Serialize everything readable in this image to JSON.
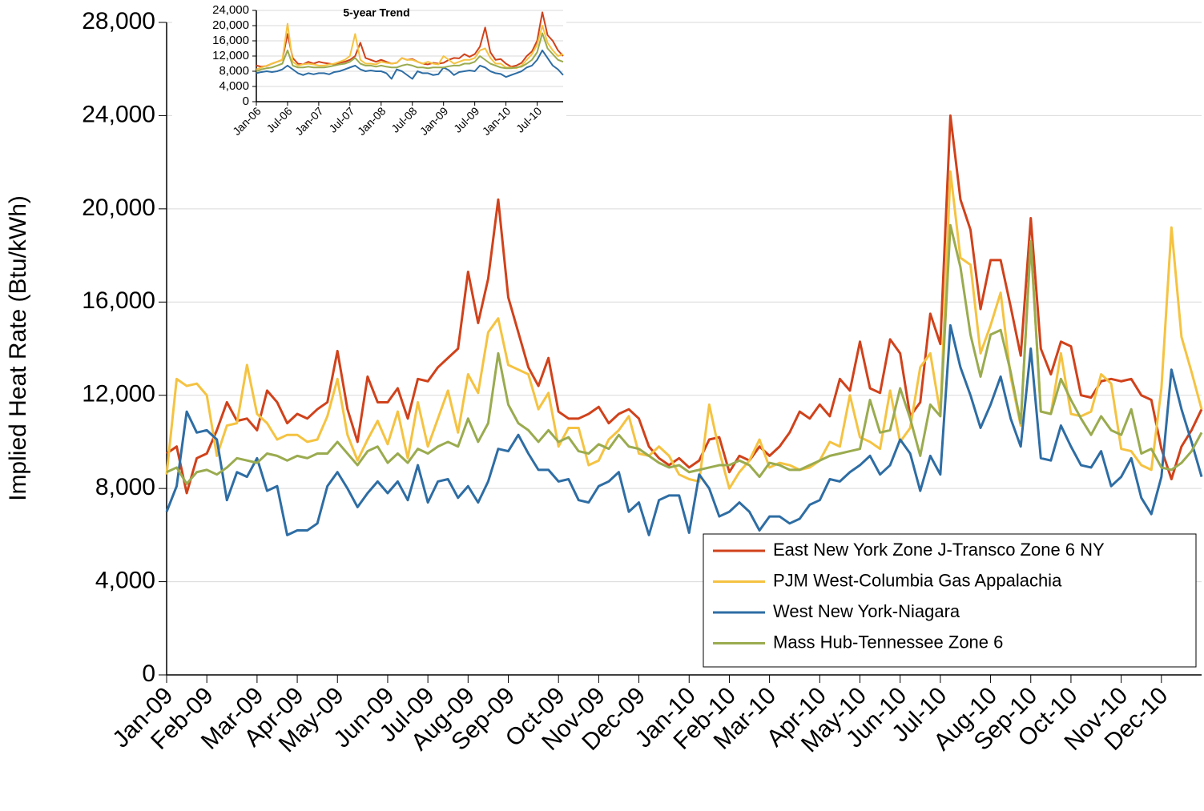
{
  "chart_data": [
    {
      "type": "line",
      "y_label": "Implied Heat Rate (Btu/kWh)",
      "categories": [
        "Jan-09",
        null,
        null,
        null,
        "Feb-09",
        null,
        null,
        null,
        null,
        "Mar-09",
        null,
        null,
        null,
        "Apr-09",
        null,
        null,
        null,
        "May-09",
        null,
        null,
        null,
        null,
        "Jun-09",
        null,
        null,
        null,
        "Jul-09",
        null,
        null,
        null,
        "Aug-09",
        null,
        null,
        null,
        "Sep-09",
        null,
        null,
        null,
        null,
        "Oct-09",
        null,
        null,
        null,
        "Nov-09",
        null,
        null,
        null,
        "Dec-09",
        null,
        null,
        null,
        null,
        "Jan-10",
        null,
        null,
        null,
        "Feb-10",
        null,
        null,
        null,
        "Mar-10",
        null,
        null,
        null,
        null,
        "Apr-10",
        null,
        null,
        null,
        "May-10",
        null,
        null,
        null,
        "Jun-10",
        null,
        null,
        null,
        "Jul-10",
        null,
        null,
        null,
        null,
        "Aug-10",
        null,
        null,
        null,
        "Sep-10",
        null,
        null,
        null,
        "Oct-10",
        null,
        null,
        null,
        null,
        "Nov-10",
        null,
        null,
        null,
        "Dec-10",
        null,
        null,
        null,
        null
      ],
      "series": [
        {
          "name": "East New York Zone J-Transco Zone 6 NY",
          "color": "#d0421b",
          "values": [
            9500,
            9800,
            7800,
            9300,
            9500,
            10500,
            11700,
            10900,
            11000,
            10500,
            12200,
            11700,
            10800,
            11200,
            11000,
            11400,
            11700,
            13900,
            11400,
            10000,
            12800,
            11700,
            11700,
            12300,
            11000,
            12700,
            12600,
            13200,
            13600,
            14000,
            17300,
            15100,
            17000,
            20400,
            16200,
            14700,
            13200,
            12400,
            13600,
            11300,
            11000,
            11000,
            11200,
            11500,
            10800,
            11200,
            11400,
            11000,
            9800,
            9300,
            9000,
            9300,
            8900,
            9200,
            10100,
            10200,
            8700,
            9400,
            9200,
            9800,
            9400,
            9800,
            10400,
            11300,
            11000,
            11600,
            11100,
            12700,
            12200,
            14300,
            12300,
            12100,
            14400,
            13800,
            11100,
            11700,
            15500,
            14200,
            24000,
            20400,
            19100,
            15700,
            17800,
            17800,
            15800,
            13700,
            19600,
            14000,
            12900,
            14300,
            14100,
            12000,
            11900,
            12600,
            12700,
            12600,
            12700,
            12000,
            11800,
            9700,
            8400,
            9800,
            10500,
            11400
          ]
        },
        {
          "name": "PJM West-Columbia Gas Appalachia",
          "color": "#f5c342",
          "values": [
            8600,
            12700,
            12400,
            12500,
            12000,
            9400,
            10700,
            10800,
            13300,
            11200,
            10800,
            10100,
            10300,
            10300,
            10000,
            10100,
            11100,
            12700,
            10300,
            9200,
            10100,
            10900,
            9900,
            11300,
            9300,
            11700,
            9800,
            11000,
            12200,
            10400,
            12900,
            12100,
            14700,
            15300,
            13300,
            13100,
            12900,
            11400,
            12100,
            9800,
            10600,
            10600,
            9000,
            9200,
            10100,
            10500,
            11100,
            9500,
            9400,
            9800,
            9400,
            8600,
            8400,
            8300,
            11600,
            9600,
            8000,
            8700,
            9200,
            10100,
            8900,
            9100,
            9000,
            8800,
            8900,
            9200,
            10000,
            9800,
            12000,
            10200,
            10000,
            9700,
            12200,
            10000,
            10600,
            13200,
            13800,
            11200,
            21600,
            17900,
            17600,
            13800,
            15000,
            16400,
            12800,
            10700,
            18600,
            11300,
            11200,
            13800,
            11200,
            11100,
            11300,
            12900,
            12500,
            9700,
            9600,
            9000,
            8800,
            12300,
            19200,
            14500,
            13000,
            11400
          ]
        },
        {
          "name": "West New York-Niagara",
          "color": "#2e6da4",
          "values": [
            7000,
            8100,
            11300,
            10400,
            10500,
            10100,
            7500,
            8700,
            8500,
            9300,
            7900,
            8100,
            6000,
            6200,
            6200,
            6500,
            8100,
            8700,
            8000,
            7200,
            7800,
            8300,
            7800,
            8300,
            7500,
            9000,
            7400,
            8300,
            8400,
            7600,
            8100,
            7400,
            8300,
            9700,
            9600,
            10300,
            9500,
            8800,
            8800,
            8300,
            8400,
            7500,
            7400,
            8100,
            8300,
            8700,
            7000,
            7400,
            6000,
            7500,
            7700,
            7700,
            6100,
            8600,
            8000,
            6800,
            7000,
            7400,
            7000,
            6200,
            6800,
            6800,
            6500,
            6700,
            7300,
            7500,
            8400,
            8300,
            8700,
            9000,
            9400,
            8600,
            9000,
            10100,
            9500,
            7900,
            9400,
            8600,
            15000,
            13200,
            12000,
            10600,
            11600,
            12800,
            11000,
            9800,
            14000,
            9300,
            9200,
            10700,
            9800,
            9000,
            8900,
            9600,
            8100,
            8500,
            9300,
            7600,
            6900,
            8500,
            13100,
            11400,
            10000,
            8500
          ]
        },
        {
          "name": "Mass Hub-Tennessee Zone 6",
          "color": "#9aab4f",
          "values": [
            8700,
            8900,
            8200,
            8700,
            8800,
            8600,
            8900,
            9300,
            9200,
            9100,
            9500,
            9400,
            9200,
            9400,
            9300,
            9500,
            9500,
            10000,
            9500,
            9000,
            9600,
            9800,
            9100,
            9500,
            9100,
            9700,
            9500,
            9800,
            10000,
            9800,
            11000,
            10000,
            10800,
            13800,
            11600,
            10800,
            10500,
            10000,
            10500,
            10000,
            10200,
            9600,
            9500,
            9900,
            9700,
            10300,
            9800,
            9700,
            9400,
            9100,
            8900,
            9000,
            8700,
            8800,
            8900,
            9000,
            9000,
            9200,
            9000,
            8500,
            9100,
            9000,
            8800,
            8800,
            9000,
            9200,
            9400,
            9500,
            9600,
            9700,
            11800,
            10400,
            10500,
            12300,
            11000,
            9400,
            11600,
            11100,
            19300,
            17500,
            14600,
            12800,
            14600,
            14800,
            13000,
            10800,
            18600,
            11300,
            11200,
            12700,
            11800,
            11000,
            10300,
            11100,
            10500,
            10300,
            11400,
            9500,
            9700,
            8900,
            8800,
            9100,
            9600,
            10400
          ]
        }
      ],
      "ylim": [
        0,
        28000
      ],
      "yticks": [
        0,
        {
          "value": 4000,
          "label": "4,000"
        },
        {
          "value": 8000,
          "label": "8,000"
        },
        {
          "value": 12000,
          "label": "12,000"
        },
        {
          "value": 16000,
          "label": "16,000"
        },
        {
          "value": 20000,
          "label": "20,000"
        },
        {
          "value": 24000,
          "label": "24,000"
        },
        {
          "value": 28000,
          "label": "28,000"
        }
      ],
      "grid": true,
      "legend": "lower-right"
    },
    {
      "type": "line",
      "title": "5-year Trend",
      "categories": [
        "Jan-06",
        null,
        null,
        null,
        null,
        null,
        "Jul-06",
        null,
        null,
        null,
        null,
        null,
        "Jan-07",
        null,
        null,
        null,
        null,
        null,
        "Jul-07",
        null,
        null,
        null,
        null,
        null,
        "Jan-08",
        null,
        null,
        null,
        null,
        null,
        "Jul-08",
        null,
        null,
        null,
        null,
        null,
        "Jan-09",
        null,
        null,
        null,
        null,
        null,
        "Jul-09",
        null,
        null,
        null,
        null,
        null,
        "Jan-10",
        null,
        null,
        null,
        null,
        null,
        "Jul-10",
        null,
        null,
        null,
        null,
        null
      ],
      "series": [
        {
          "color": "#d0421b",
          "values": [
            9500,
            9200,
            9400,
            10000,
            10500,
            11000,
            17800,
            11500,
            10000,
            9800,
            10500,
            10000,
            10500,
            10200,
            10000,
            9800,
            10200,
            10500,
            11000,
            12000,
            15500,
            11500,
            11000,
            10500,
            11000,
            10500,
            10000,
            10200,
            11500,
            11000,
            11200,
            10500,
            10000,
            9800,
            10200,
            10000,
            10200,
            11000,
            11500,
            11400,
            12500,
            11800,
            12500,
            14500,
            19500,
            13000,
            11000,
            11200,
            10000,
            9200,
            9500,
            10200,
            12000,
            13200,
            16000,
            23500,
            17500,
            16000,
            13500,
            12000
          ]
        },
        {
          "color": "#f5c342",
          "values": [
            8500,
            9000,
            9500,
            10000,
            10500,
            11000,
            20500,
            10500,
            9500,
            9800,
            10000,
            9800,
            9500,
            9500,
            9800,
            10000,
            10500,
            11000,
            12000,
            17800,
            11000,
            10000,
            10000,
            9800,
            10500,
            10200,
            10000,
            10200,
            11500,
            11000,
            11000,
            10500,
            10000,
            10500,
            10000,
            9800,
            12000,
            11000,
            10000,
            10500,
            11000,
            11000,
            11500,
            13500,
            14000,
            11500,
            10000,
            10000,
            9000,
            9000,
            8800,
            9500,
            11000,
            12500,
            15000,
            20000,
            15500,
            13500,
            12000,
            12500
          ]
        },
        {
          "color": "#2e6da4",
          "values": [
            7500,
            7800,
            8000,
            7800,
            8000,
            8500,
            9500,
            8500,
            7500,
            7000,
            7500,
            7200,
            7500,
            7500,
            7200,
            7800,
            8000,
            8500,
            9000,
            9500,
            8500,
            8000,
            8200,
            8000,
            8000,
            7500,
            6000,
            8500,
            8000,
            7000,
            6000,
            8000,
            7500,
            7500,
            7000,
            7200,
            9000,
            8300,
            7000,
            7800,
            8000,
            8200,
            8000,
            9500,
            9000,
            8000,
            7500,
            7300,
            6500,
            7000,
            7500,
            8000,
            9000,
            9500,
            11000,
            13500,
            11500,
            9500,
            8500,
            7000
          ]
        },
        {
          "color": "#9aab4f",
          "values": [
            8000,
            8500,
            8800,
            9000,
            9500,
            10000,
            13500,
            9500,
            9000,
            9000,
            9200,
            9000,
            9000,
            9000,
            9200,
            9500,
            9800,
            10000,
            10500,
            11500,
            10000,
            9500,
            9500,
            9200,
            9500,
            9200,
            9000,
            9000,
            9500,
            9800,
            9500,
            9000,
            9000,
            8800,
            9000,
            9000,
            9000,
            9300,
            9500,
            9500,
            10000,
            10000,
            10500,
            12000,
            11000,
            10000,
            9500,
            9000,
            8800,
            8800,
            9000,
            9200,
            10000,
            11000,
            13000,
            18000,
            14000,
            12500,
            11000,
            10500
          ]
        }
      ],
      "ylim": [
        0,
        24000
      ],
      "yticks": [
        0,
        {
          "value": 4000,
          "label": "4,000"
        },
        {
          "value": 8000,
          "label": "8,000"
        },
        {
          "value": 12000,
          "label": "12,000"
        },
        {
          "value": 16000,
          "label": "16,000"
        },
        {
          "value": 20000,
          "label": "20,000"
        },
        {
          "value": 24000,
          "label": "24,000"
        }
      ],
      "grid": true
    }
  ]
}
